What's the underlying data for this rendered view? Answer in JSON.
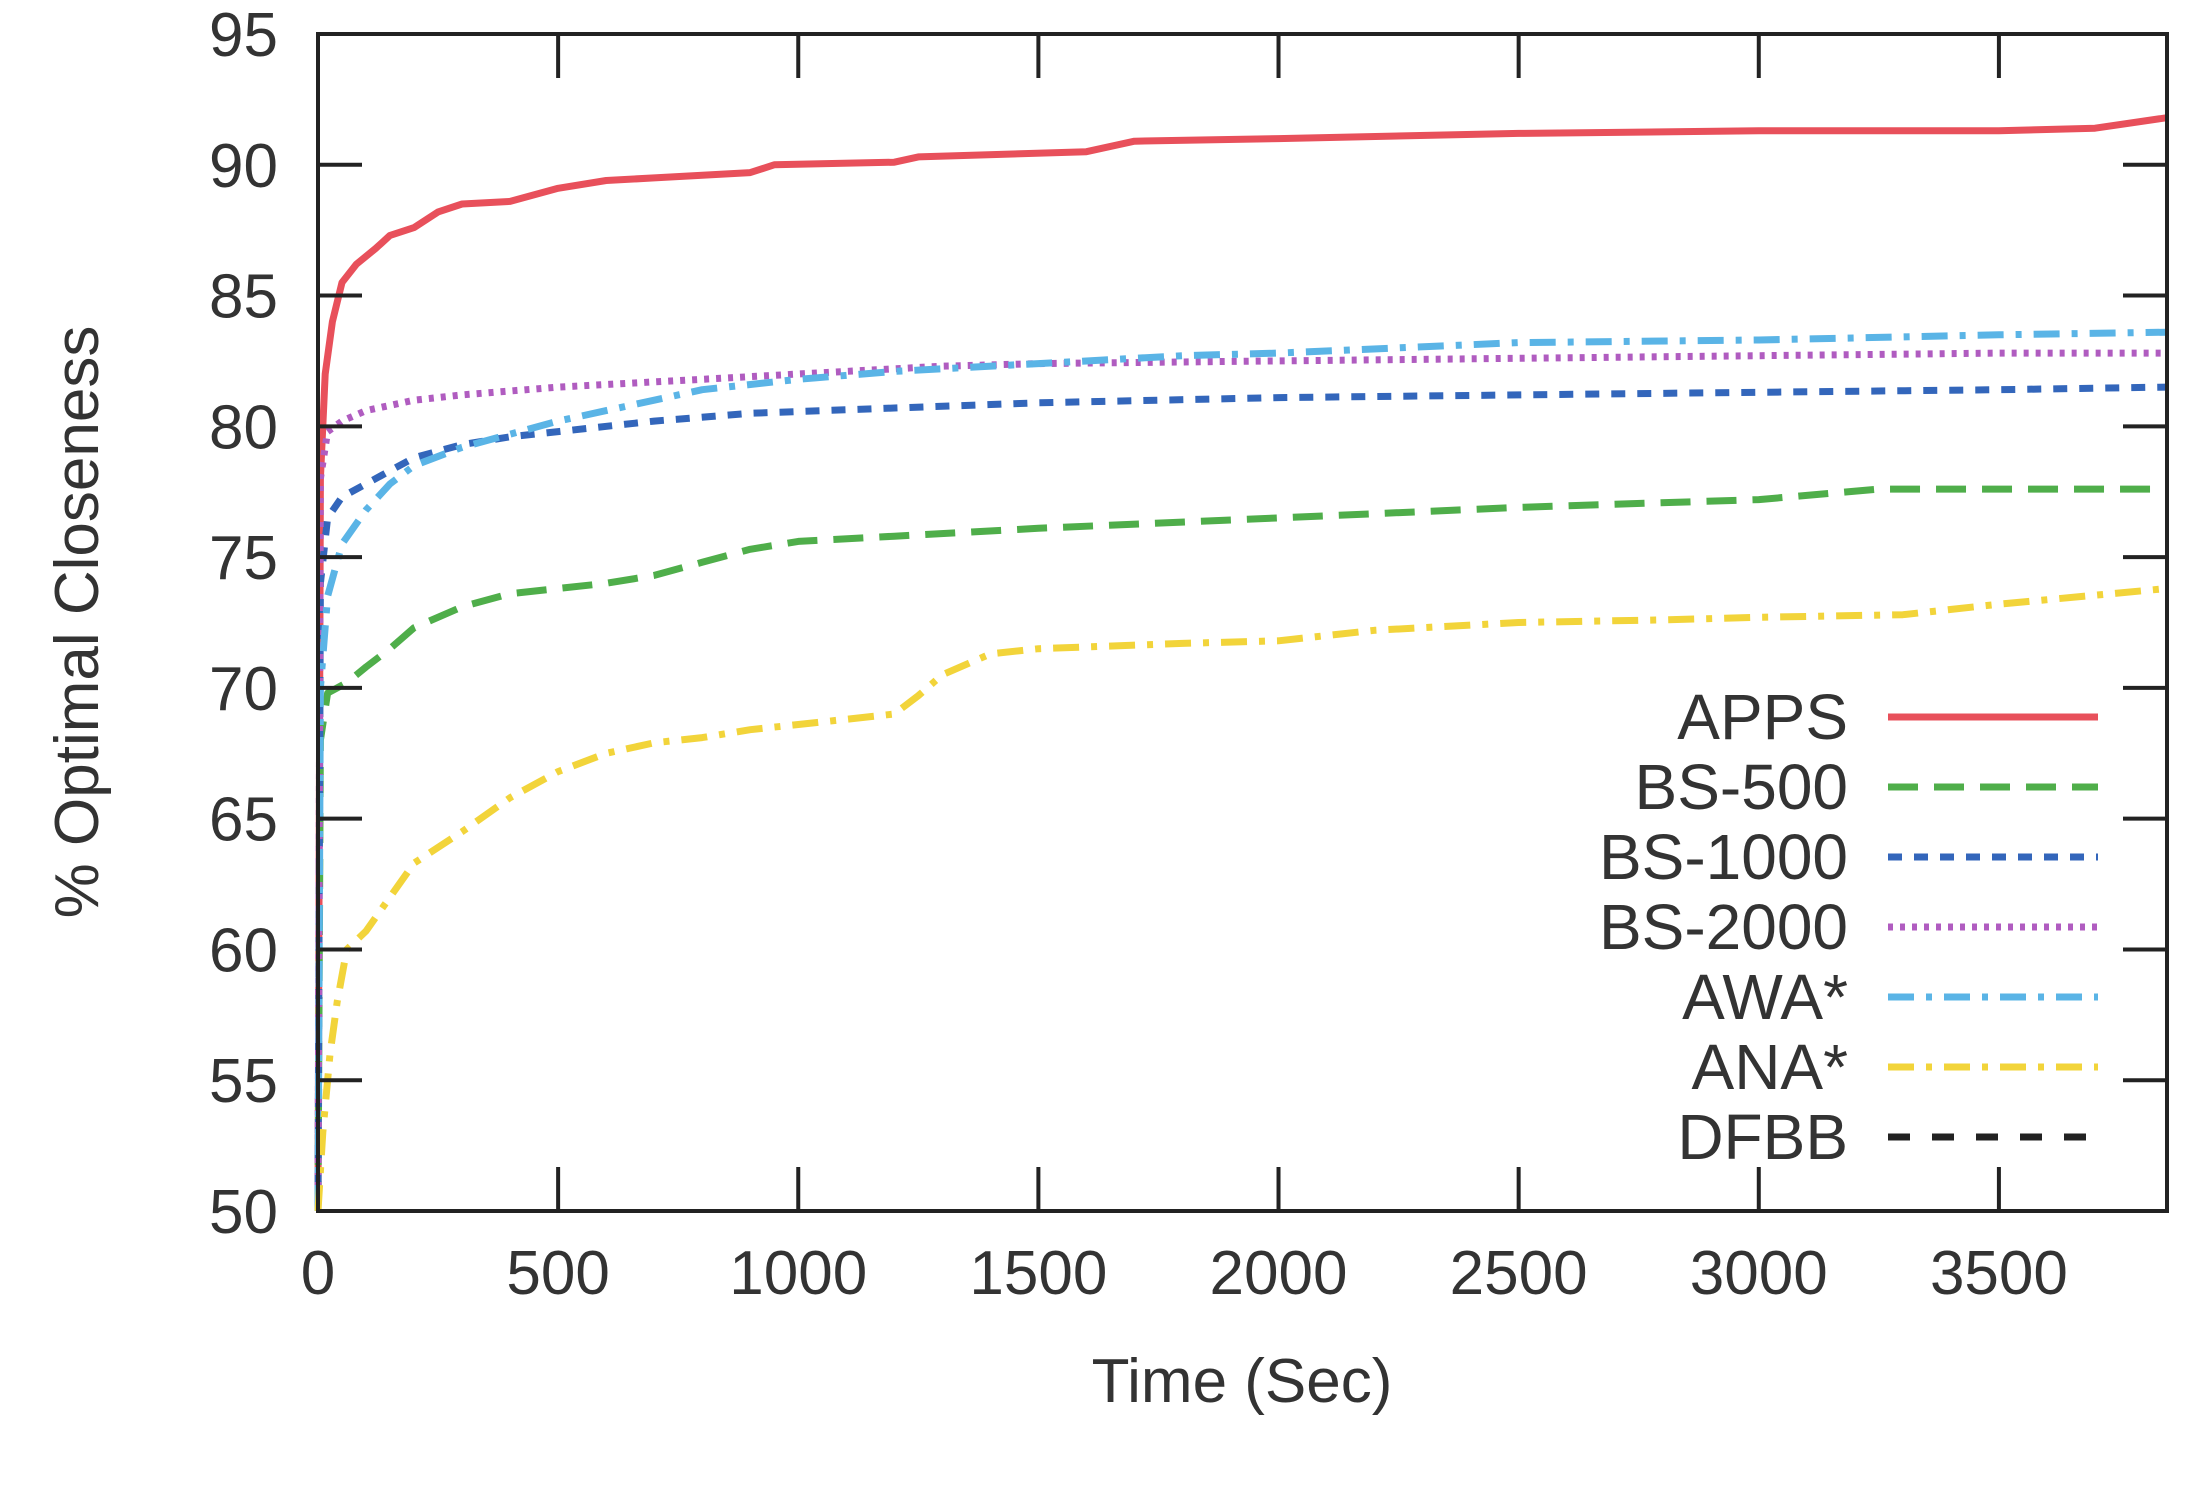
{
  "chart_data": {
    "type": "line",
    "title": "",
    "xlabel": "Time (Sec)",
    "ylabel": "% Optimal Closeness",
    "xlim": [
      0,
      3850
    ],
    "ylim": [
      50,
      95
    ],
    "xticks": [
      0,
      500,
      1000,
      1500,
      2000,
      2500,
      3000,
      3500
    ],
    "yticks": [
      50,
      55,
      60,
      65,
      70,
      75,
      80,
      85,
      90,
      95
    ],
    "xtick_labels": [
      "0",
      "500",
      "1000",
      "1500",
      "2000",
      "2500",
      "3000",
      "3500"
    ],
    "ytick_labels": [
      "50",
      "55",
      "60",
      "65",
      "70",
      "75",
      "80",
      "85",
      "90",
      "95"
    ],
    "grid": false,
    "legend_position": "right",
    "series": [
      {
        "name": "APPS",
        "color": "#e8505b",
        "dash": "solid",
        "points": [
          [
            0,
            50
          ],
          [
            5,
            78
          ],
          [
            15,
            82
          ],
          [
            30,
            84
          ],
          [
            50,
            85.5
          ],
          [
            80,
            86.2
          ],
          [
            120,
            86.8
          ],
          [
            150,
            87.3
          ],
          [
            200,
            87.6
          ],
          [
            250,
            88.2
          ],
          [
            300,
            88.5
          ],
          [
            400,
            88.6
          ],
          [
            500,
            89.1
          ],
          [
            600,
            89.4
          ],
          [
            700,
            89.5
          ],
          [
            900,
            89.7
          ],
          [
            950,
            90
          ],
          [
            1200,
            90.1
          ],
          [
            1250,
            90.3
          ],
          [
            1600,
            90.5
          ],
          [
            1700,
            90.9
          ],
          [
            2000,
            91
          ],
          [
            2500,
            91.2
          ],
          [
            3000,
            91.3
          ],
          [
            3500,
            91.3
          ],
          [
            3700,
            91.4
          ],
          [
            3850,
            91.8
          ]
        ]
      },
      {
        "name": "BS-500",
        "color": "#4fae4a",
        "dash": "dashed",
        "points": [
          [
            0,
            50
          ],
          [
            5,
            68
          ],
          [
            20,
            69.8
          ],
          [
            60,
            70.2
          ],
          [
            100,
            70.8
          ],
          [
            150,
            71.5
          ],
          [
            200,
            72.3
          ],
          [
            300,
            73.1
          ],
          [
            400,
            73.6
          ],
          [
            500,
            73.8
          ],
          [
            600,
            74
          ],
          [
            700,
            74.3
          ],
          [
            800,
            74.8
          ],
          [
            900,
            75.3
          ],
          [
            1000,
            75.6
          ],
          [
            1200,
            75.8
          ],
          [
            1500,
            76.1
          ],
          [
            2000,
            76.5
          ],
          [
            2500,
            76.9
          ],
          [
            3000,
            77.2
          ],
          [
            3250,
            77.6
          ],
          [
            3500,
            77.6
          ],
          [
            3850,
            77.6
          ]
        ]
      },
      {
        "name": "BS-1000",
        "color": "#3366bb",
        "dash": "dense-dashed",
        "points": [
          [
            0,
            50
          ],
          [
            5,
            74
          ],
          [
            20,
            76.5
          ],
          [
            50,
            77.3
          ],
          [
            100,
            77.8
          ],
          [
            150,
            78.3
          ],
          [
            200,
            78.8
          ],
          [
            300,
            79.3
          ],
          [
            400,
            79.6
          ],
          [
            500,
            79.8
          ],
          [
            700,
            80.2
          ],
          [
            900,
            80.5
          ],
          [
            1200,
            80.7
          ],
          [
            1500,
            80.9
          ],
          [
            2000,
            81.1
          ],
          [
            2500,
            81.2
          ],
          [
            3000,
            81.3
          ],
          [
            3500,
            81.4
          ],
          [
            3850,
            81.5
          ]
        ]
      },
      {
        "name": "BS-2000",
        "color": "#b05cc0",
        "dash": "dotted",
        "points": [
          [
            0,
            50
          ],
          [
            5,
            78
          ],
          [
            20,
            79.8
          ],
          [
            50,
            80.2
          ],
          [
            100,
            80.6
          ],
          [
            200,
            81
          ],
          [
            300,
            81.2
          ],
          [
            500,
            81.5
          ],
          [
            800,
            81.8
          ],
          [
            1000,
            82
          ],
          [
            1300,
            82.3
          ],
          [
            1500,
            82.4
          ],
          [
            2000,
            82.5
          ],
          [
            2500,
            82.6
          ],
          [
            3000,
            82.7
          ],
          [
            3500,
            82.8
          ],
          [
            3850,
            82.8
          ]
        ]
      },
      {
        "name": "AWA*",
        "color": "#5ab4e6",
        "dash": "dash-dot",
        "points": [
          [
            0,
            50
          ],
          [
            5,
            70
          ],
          [
            20,
            73.5
          ],
          [
            50,
            75.5
          ],
          [
            100,
            76.8
          ],
          [
            150,
            77.8
          ],
          [
            200,
            78.5
          ],
          [
            300,
            79.2
          ],
          [
            400,
            79.7
          ],
          [
            500,
            80.2
          ],
          [
            600,
            80.6
          ],
          [
            700,
            81
          ],
          [
            800,
            81.4
          ],
          [
            1000,
            81.8
          ],
          [
            1200,
            82.1
          ],
          [
            1500,
            82.4
          ],
          [
            1800,
            82.7
          ],
          [
            2000,
            82.8
          ],
          [
            2500,
            83.2
          ],
          [
            3000,
            83.3
          ],
          [
            3500,
            83.5
          ],
          [
            3850,
            83.6
          ]
        ]
      },
      {
        "name": "ANA*",
        "color": "#f2d43a",
        "dash": "dash-dot",
        "points": [
          [
            0,
            50
          ],
          [
            10,
            53
          ],
          [
            25,
            56
          ],
          [
            40,
            58
          ],
          [
            60,
            60
          ],
          [
            100,
            60.7
          ],
          [
            150,
            62
          ],
          [
            200,
            63.3
          ],
          [
            300,
            64.5
          ],
          [
            400,
            65.8
          ],
          [
            500,
            66.8
          ],
          [
            600,
            67.5
          ],
          [
            700,
            67.9
          ],
          [
            800,
            68.1
          ],
          [
            900,
            68.4
          ],
          [
            1000,
            68.6
          ],
          [
            1100,
            68.8
          ],
          [
            1200,
            69
          ],
          [
            1250,
            69.7
          ],
          [
            1300,
            70.5
          ],
          [
            1400,
            71.3
          ],
          [
            1500,
            71.5
          ],
          [
            1800,
            71.7
          ],
          [
            2000,
            71.8
          ],
          [
            2200,
            72.2
          ],
          [
            2500,
            72.5
          ],
          [
            2800,
            72.6
          ],
          [
            3000,
            72.7
          ],
          [
            3300,
            72.8
          ],
          [
            3500,
            73.2
          ],
          [
            3850,
            73.8
          ]
        ]
      },
      {
        "name": "DFBB",
        "color": "#222222",
        "dash": "long-dashed",
        "points": []
      }
    ]
  }
}
